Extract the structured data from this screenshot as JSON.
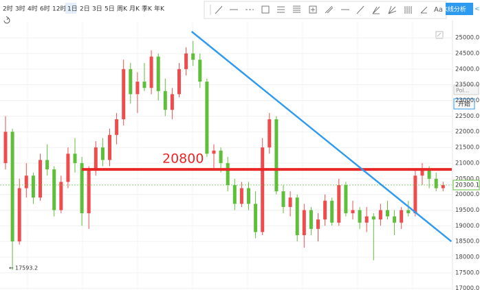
{
  "toolbar": {
    "periods": [
      "2时",
      "3时",
      "4时",
      "6时",
      "12时",
      "1日",
      "2日",
      "3日",
      "5日",
      "周K",
      "月K",
      "季K",
      "年K"
    ],
    "active_index": 5,
    "analysis_button": "K线分析"
  },
  "side_panel": {
    "indicator": "Pol...",
    "start_button": "开始"
  },
  "chart_data": {
    "type": "candlestick",
    "open": [
      21000,
      22000,
      18500,
      20200,
      20600,
      19900,
      21100,
      20800,
      19500,
      20400,
      21300,
      21000,
      19400,
      20800,
      21500,
      21100,
      21900,
      22400,
      24000,
      23200,
      23600,
      23400,
      24400,
      23300,
      22700,
      23200,
      24000,
      24500,
      24300,
      23600,
      21300,
      21400,
      21000,
      20300,
      19700,
      20200,
      19700,
      18800,
      21500,
      22400,
      20100,
      19600,
      19900,
      18700,
      19500,
      18900,
      19200,
      19800,
      19100,
      20300,
      19400,
      19500,
      19100,
      19300,
      19200,
      19500,
      19300,
      19100,
      19500,
      19400,
      20600,
      20800,
      20500,
      20200
    ],
    "high": [
      22500,
      22100,
      20500,
      21000,
      20700,
      21300,
      21600,
      20900,
      20600,
      21500,
      21800,
      21200,
      20900,
      21700,
      21800,
      22100,
      22600,
      24300,
      24200,
      23900,
      24200,
      24600,
      24500,
      23700,
      23400,
      24200,
      24700,
      24900,
      24500,
      23700,
      21600,
      21500,
      21200,
      20500,
      20400,
      20400,
      20100,
      21800,
      22600,
      22500,
      20300,
      20100,
      20000,
      19700,
      19600,
      19400,
      20000,
      19900,
      20500,
      20400,
      19800,
      19600,
      19600,
      19400,
      19700,
      19800,
      19500,
      19600,
      19800,
      20800,
      21000,
      20900,
      20700,
      20400
    ],
    "low": [
      20800,
      17593.2,
      18400,
      19900,
      19700,
      19800,
      20600,
      19300,
      19400,
      20200,
      20700,
      19000,
      18900,
      20600,
      20900,
      20900,
      21600,
      22200,
      22900,
      22600,
      23300,
      23200,
      23000,
      22500,
      22400,
      23100,
      23800,
      24100,
      23400,
      21200,
      20800,
      20700,
      20100,
      19500,
      19600,
      19500,
      18600,
      18700,
      21300,
      20000,
      19400,
      19300,
      18500,
      18300,
      18700,
      18500,
      19000,
      19000,
      19000,
      19300,
      19200,
      18900,
      18800,
      17900,
      19000,
      19200,
      18700,
      18900,
      19300,
      19300,
      20300,
      20200,
      20100,
      20100
    ],
    "close": [
      22000,
      18500,
      20200,
      20600,
      19900,
      21100,
      20800,
      19500,
      20400,
      21300,
      21000,
      19400,
      20800,
      21500,
      21100,
      21900,
      22400,
      24000,
      23200,
      23600,
      23400,
      24400,
      23300,
      22700,
      23200,
      24000,
      24500,
      24300,
      23600,
      21300,
      21400,
      21000,
      20300,
      19700,
      20200,
      19700,
      18800,
      21500,
      22400,
      20100,
      19600,
      19900,
      18700,
      19500,
      18900,
      19200,
      19800,
      19100,
      20300,
      19400,
      19500,
      19100,
      19300,
      19200,
      19500,
      19300,
      19100,
      19500,
      19400,
      20600,
      20800,
      20500,
      20200,
      20300.1
    ],
    "colors": {
      "up": "#ef4d4d",
      "down": "#5fbf3a"
    },
    "ylim": [
      16950,
      25550
    ],
    "yticks": [
      {
        "value": 17000,
        "label": "17000.0"
      },
      {
        "value": 17500,
        "label": "17500.0"
      },
      {
        "value": 18000,
        "label": "18000.0"
      },
      {
        "value": 18500,
        "label": "18500.0"
      },
      {
        "value": 19000,
        "label": "19000.0"
      },
      {
        "value": 19500,
        "label": "19500.0"
      },
      {
        "value": 20000,
        "label": "20000.0"
      },
      {
        "value": 20500,
        "label": "20500.0"
      },
      {
        "value": 21000,
        "label": "21000.0"
      },
      {
        "value": 21500,
        "label": "21500.0"
      },
      {
        "value": 22000,
        "label": "22000.0"
      },
      {
        "value": 22500,
        "label": "22500.0"
      },
      {
        "value": 23000,
        "label": "23000.0"
      },
      {
        "value": 23500,
        "label": "23500.0"
      },
      {
        "value": 24000,
        "label": "24000.0"
      },
      {
        "value": 24500,
        "label": "24500.0"
      },
      {
        "value": 25000,
        "label": "25000.0"
      }
    ],
    "grid": true,
    "horizontal_line": {
      "value": 20800,
      "label": "20800",
      "color": "#e82727",
      "start_index": 11
    },
    "trendline": {
      "x": [
        26.8,
        64.2
      ],
      "values": [
        25200,
        18500
      ],
      "color": "#2f9bf0"
    }
  }
}
